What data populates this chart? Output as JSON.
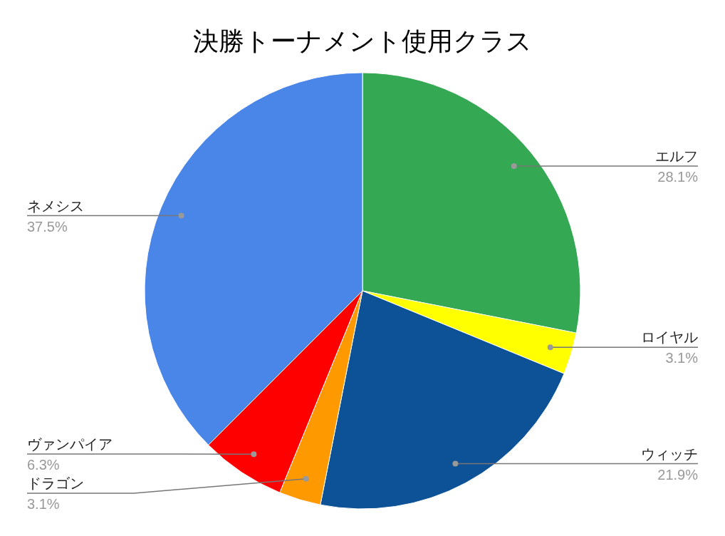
{
  "chart_data": {
    "type": "pie",
    "title": "決勝トーナメント使用クラス",
    "categories": [
      "エルフ",
      "ロイヤル",
      "ウィッチ",
      "ドラゴン",
      "ヴァンパイア",
      "ネメシス"
    ],
    "values": [
      28.1,
      3.1,
      21.9,
      3.1,
      6.3,
      37.5
    ],
    "colors": [
      "#34a853",
      "#ffff00",
      "#0d5296",
      "#ff9900",
      "#ff0000",
      "#4a86e8"
    ],
    "value_labels": [
      "28.1%",
      "3.1%",
      "21.9%",
      "3.1%",
      "6.3%",
      "37.5%"
    ]
  }
}
